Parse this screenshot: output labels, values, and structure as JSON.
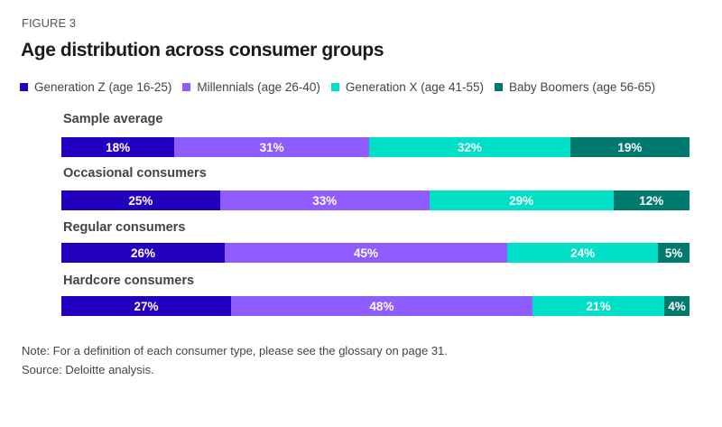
{
  "figure_label": "FIGURE 3",
  "chart_data": {
    "type": "bar",
    "orientation": "horizontal",
    "stacked": true,
    "percent": true,
    "title": "Age distribution across consumer groups",
    "legend_position": "top",
    "categories": [
      "Sample average",
      "Occasional consumers",
      "Regular consumers",
      "Hardcore consumers"
    ],
    "series": [
      {
        "name": "Generation Z (age 16-25)",
        "color": "#2300c0",
        "values": [
          18,
          25,
          26,
          27
        ]
      },
      {
        "name": "Millennials (age 26-40)",
        "color": "#8f5cff",
        "values": [
          31,
          33,
          45,
          48
        ]
      },
      {
        "name": "Generation X (age 41-55)",
        "color": "#00e0c8",
        "values": [
          32,
          29,
          24,
          21
        ]
      },
      {
        "name": "Baby Boomers (age 56-65)",
        "color": "#007a6e",
        "values": [
          19,
          12,
          5,
          4
        ]
      }
    ],
    "grid": false
  },
  "notes": {
    "note": "Note: For a definition of each consumer type, please see the glossary on page 31.",
    "source": "Source: Deloitte analysis."
  }
}
